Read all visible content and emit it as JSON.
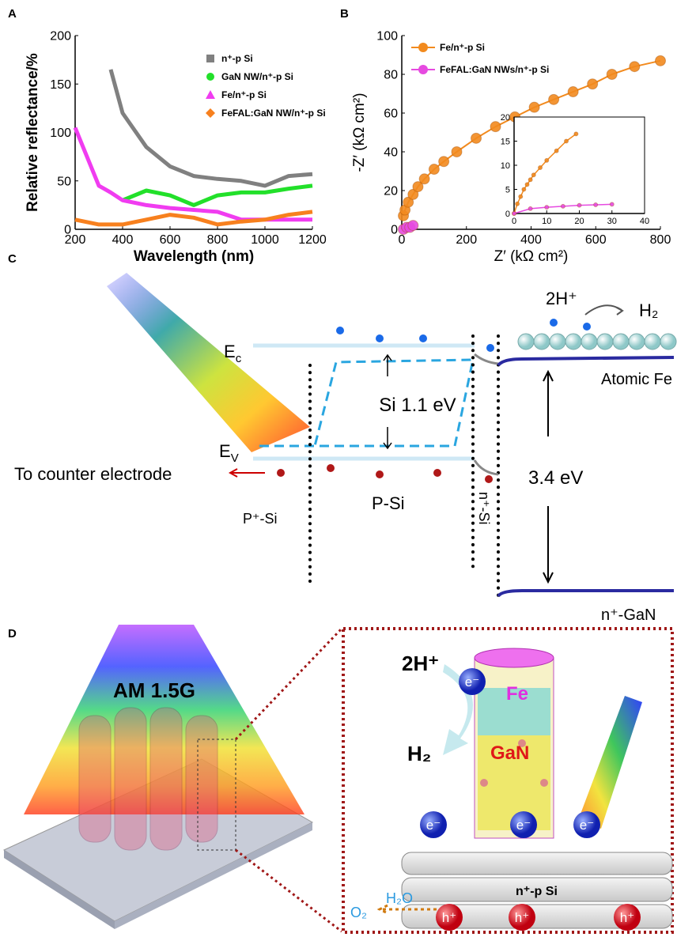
{
  "panels": [
    "A",
    "B",
    "C",
    "D"
  ],
  "chart_data": [
    {
      "type": "line",
      "xlabel": "Wavelength (nm)",
      "ylabel": "Relative reflectance/%",
      "xlim": [
        200,
        1200
      ],
      "xticks": [
        200,
        400,
        600,
        800,
        1000,
        1200
      ],
      "ylim": [
        0,
        200
      ],
      "yticks": [
        0,
        50,
        100,
        150,
        200
      ],
      "series": [
        {
          "name": "n⁺-p Si",
          "color": "#808080",
          "legend_marker": "square",
          "x": [
            200,
            300,
            350,
            400,
            500,
            600,
            700,
            800,
            900,
            1000,
            1100,
            1200
          ],
          "values": [
            null,
            null,
            165,
            120,
            85,
            65,
            55,
            52,
            50,
            45,
            55,
            57
          ]
        },
        {
          "name": "GaN NW/n⁺-p Si",
          "color": "#22e02a",
          "legend_marker": "circle",
          "x": [
            200,
            300,
            350,
            400,
            500,
            600,
            700,
            800,
            900,
            1000,
            1100,
            1200
          ],
          "values": [
            15,
            null,
            null,
            30,
            40,
            35,
            25,
            35,
            38,
            38,
            42,
            45
          ]
        },
        {
          "name": "Fe/n⁺-p Si",
          "color": "#f03cf0",
          "legend_marker": "triangle",
          "x": [
            200,
            300,
            350,
            400,
            500,
            600,
            700,
            800,
            900,
            1000,
            1100,
            1200
          ],
          "values": [
            105,
            45,
            38,
            30,
            25,
            22,
            20,
            18,
            10,
            10,
            10,
            10
          ]
        },
        {
          "name": "FeFAL:GaN NW/n⁺-p Si",
          "color": "#f7801e",
          "legend_marker": "diamond",
          "x": [
            200,
            300,
            350,
            400,
            500,
            600,
            700,
            800,
            900,
            1000,
            1100,
            1200
          ],
          "values": [
            10,
            5,
            5,
            5,
            10,
            15,
            12,
            5,
            8,
            10,
            15,
            18
          ]
        }
      ]
    },
    {
      "type": "line",
      "xlabel": "Z′ (kΩ cm²)",
      "ylabel": "-Z′ (kΩ cm²)",
      "marker": "circle",
      "xlim": [
        0,
        800
      ],
      "xticks": [
        0,
        200,
        400,
        600,
        800
      ],
      "ylim": [
        0,
        100
      ],
      "yticks": [
        0,
        20,
        40,
        60,
        80,
        100
      ],
      "series": [
        {
          "name": "Fe/n⁺-p Si",
          "color": "#f28a1e",
          "x": [
            5,
            10,
            20,
            35,
            50,
            70,
            100,
            130,
            170,
            230,
            290,
            350,
            410,
            470,
            530,
            590,
            650,
            720,
            800
          ],
          "values": [
            7,
            10,
            14,
            18,
            22,
            26,
            31,
            35,
            40,
            47,
            53,
            58,
            63,
            67,
            71,
            75,
            80,
            84,
            87
          ]
        },
        {
          "name": "FeFAL:GaN NWs/n⁺-p Si",
          "color": "#e64ae0",
          "x": [
            5,
            15,
            25,
            35
          ],
          "values": [
            0,
            1,
            1,
            2
          ]
        }
      ]
    },
    {
      "type": "line",
      "marker": "circle",
      "frame": "box",
      "xlim": [
        0,
        40
      ],
      "xticks": [
        0,
        10,
        20,
        30,
        40
      ],
      "ylim": [
        0,
        20
      ],
      "yticks": [
        0,
        5,
        10,
        15,
        20
      ],
      "series": [
        {
          "color": "#f28a1e",
          "x": [
            0,
            1,
            2,
            3,
            4,
            5,
            6,
            8,
            10,
            13,
            16,
            19
          ],
          "values": [
            0,
            2,
            3.5,
            5,
            6,
            7,
            8,
            9.5,
            11,
            13,
            15,
            16.5
          ]
        },
        {
          "color": "#e64ae0",
          "x": [
            0,
            5,
            10,
            15,
            20,
            25,
            30
          ],
          "values": [
            0,
            1,
            1.3,
            1.5,
            1.7,
            1.8,
            1.9
          ]
        }
      ]
    }
  ],
  "diagram_c": {
    "ec": {
      "main": "E",
      "sub": "c"
    },
    "ev": {
      "main": "E",
      "sub": "V"
    },
    "to_counter": "To counter electrode",
    "p_plus_si": "P⁺-Si",
    "p_si": "P-Si",
    "n_plus_si": "n⁺-Si",
    "gap_si": "Si 1.1 eV",
    "gap_gan": "3.4 eV",
    "reactant": "2H⁺",
    "product": "H₂",
    "atomic_fe": "Atomic Fe",
    "n_gan": "n⁺-GaN"
  },
  "diagram_d": {
    "illumination": "AM 1.5G",
    "reactant": "2H⁺",
    "product": "H₂",
    "fe": "Fe",
    "gan": "GaN",
    "electrons": [
      "e⁻",
      "e⁻",
      "e⁻",
      "e⁻"
    ],
    "holes": [
      "h⁺",
      "h⁺",
      "h⁺"
    ],
    "substrate": "n⁺-p Si",
    "o2": "O₂",
    "h2o": "H₂O"
  }
}
